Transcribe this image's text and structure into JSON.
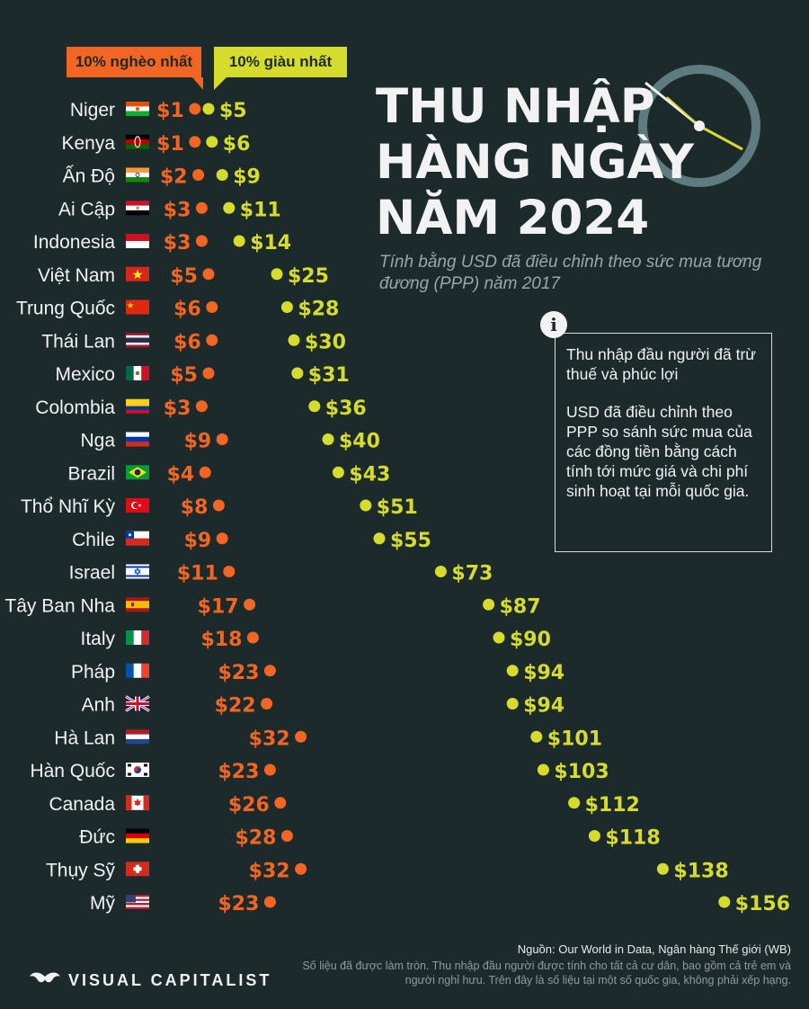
{
  "header": {
    "title_line1": "THU NHẬP",
    "title_line2": "HÀNG NGÀY",
    "title_line3": "NĂM 2024",
    "subtitle": "Tính bằng USD đã điều chỉnh theo sức mua tương đương (PPP) năm 2017"
  },
  "legend": {
    "poorest": "10% nghèo nhất",
    "richest": "10% giàu nhất"
  },
  "info": {
    "icon": "i",
    "p1": "Thu nhập đầu người đã trừ thuế và phúc lợi",
    "p2": "USD đã điều chỉnh theo PPP so sánh sức mua của các đồng tiền bằng cách tính tới mức giá và chi phí sinh hoạt tại mỗi quốc gia."
  },
  "footer": {
    "source": "Nguồn: Our World in Data, Ngân hàng Thế giới (WB)",
    "note": "Số liệu đã được làm tròn. Thu nhập đầu người được tính cho tất cả cư dân, bao gồm cả trẻ em và người nghỉ hưu. Trên đây là số liệu tại một số quốc gia, không phải xếp hạng.",
    "brand": "VISUAL CAPITALIST"
  },
  "colors": {
    "background": "#1d2a2c",
    "poorest": "#f26522",
    "richest": "#d6dc2c",
    "text": "#f2f2f2"
  },
  "chart_data": {
    "type": "dumbbell",
    "unit": "$",
    "series": [
      {
        "name": "10% nghèo nhất",
        "key": "poorest"
      },
      {
        "name": "10% giàu nhất",
        "key": "richest"
      }
    ],
    "rows": [
      {
        "country": "Niger",
        "flag": "niger",
        "poorest": 1,
        "richest": 5
      },
      {
        "country": "Kenya",
        "flag": "kenya",
        "poorest": 1,
        "richest": 6
      },
      {
        "country": "Ấn Độ",
        "flag": "india",
        "poorest": 2,
        "richest": 9
      },
      {
        "country": "Ai Cập",
        "flag": "egypt",
        "poorest": 3,
        "richest": 11
      },
      {
        "country": "Indonesia",
        "flag": "indonesia",
        "poorest": 3,
        "richest": 14
      },
      {
        "country": "Việt Nam",
        "flag": "vietnam",
        "poorest": 5,
        "richest": 25
      },
      {
        "country": "Trung Quốc",
        "flag": "china",
        "poorest": 6,
        "richest": 28
      },
      {
        "country": "Thái Lan",
        "flag": "thailand",
        "poorest": 6,
        "richest": 30
      },
      {
        "country": "Mexico",
        "flag": "mexico",
        "poorest": 5,
        "richest": 31
      },
      {
        "country": "Colombia",
        "flag": "colombia",
        "poorest": 3,
        "richest": 36
      },
      {
        "country": "Nga",
        "flag": "russia",
        "poorest": 9,
        "richest": 40
      },
      {
        "country": "Brazil",
        "flag": "brazil",
        "poorest": 4,
        "richest": 43
      },
      {
        "country": "Thổ Nhĩ Kỳ",
        "flag": "turkey",
        "poorest": 8,
        "richest": 51
      },
      {
        "country": "Chile",
        "flag": "chile",
        "poorest": 9,
        "richest": 55
      },
      {
        "country": "Israel",
        "flag": "israel",
        "poorest": 11,
        "richest": 73
      },
      {
        "country": "Tây Ban Nha",
        "flag": "spain",
        "poorest": 17,
        "richest": 87
      },
      {
        "country": "Italy",
        "flag": "italy",
        "poorest": 18,
        "richest": 90
      },
      {
        "country": "Pháp",
        "flag": "france",
        "poorest": 23,
        "richest": 94
      },
      {
        "country": "Anh",
        "flag": "uk",
        "poorest": 22,
        "richest": 94
      },
      {
        "country": "Hà Lan",
        "flag": "netherlands",
        "poorest": 32,
        "richest": 101
      },
      {
        "country": "Hàn Quốc",
        "flag": "korea",
        "poorest": 23,
        "richest": 103
      },
      {
        "country": "Canada",
        "flag": "canada",
        "poorest": 26,
        "richest": 112
      },
      {
        "country": "Đức",
        "flag": "germany",
        "poorest": 28,
        "richest": 118
      },
      {
        "country": "Thụy Sỹ",
        "flag": "switzerland",
        "poorest": 32,
        "richest": 138
      },
      {
        "country": "Mỹ",
        "flag": "usa",
        "poorest": 23,
        "richest": 156
      }
    ]
  }
}
